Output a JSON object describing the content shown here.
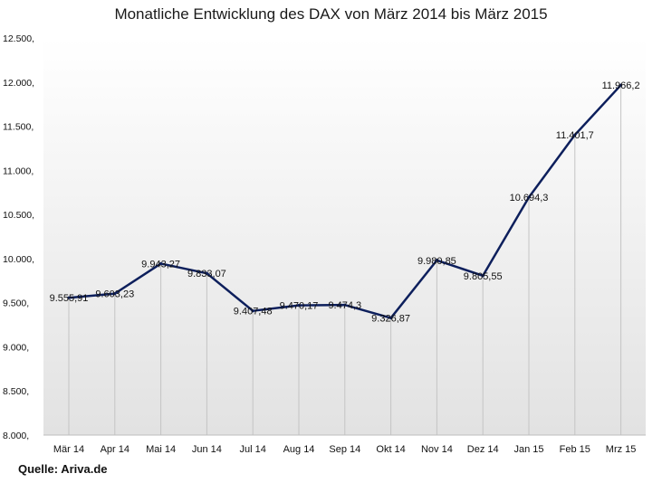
{
  "chart_data": {
    "type": "line",
    "title": "Monatliche  Entwicklung des DAX von März 2014 bis März 2015",
    "categories": [
      "Mär 14",
      "Apr 14",
      "Mai 14",
      "Jun 14",
      "Jul 14",
      "Aug 14",
      "Sep 14",
      "Okt 14",
      "Nov 14",
      "Dez 14",
      "Jan 15",
      "Feb 15",
      "Mrz 15"
    ],
    "values": [
      9555.91,
      9603.23,
      9943.27,
      9833.07,
      9407.48,
      9470.17,
      9474.3,
      9326.87,
      9980.85,
      9805.55,
      10694.3,
      11401.7,
      11966.2
    ],
    "value_labels": [
      "9.555,91",
      "9.603,23",
      "9.943,27",
      "9.833,07",
      "9.407,48",
      "9.470,17",
      "9.474,3",
      "9.326,87",
      "9.980,85",
      "9.805,55",
      "10.694,3",
      "11.401,7",
      "11.966,2"
    ],
    "ylim": [
      8000,
      12500
    ],
    "yticks": [
      8000,
      8500,
      9000,
      9500,
      10000,
      10500,
      11000,
      11500,
      12000,
      12500
    ],
    "ytick_labels": [
      "8.000,",
      "8.500,",
      "9.000,",
      "9.500,",
      "10.000,",
      "10.500,",
      "11.000,",
      "11.500,",
      "12.000,",
      "12.500,"
    ],
    "grid": false,
    "drop_lines": true,
    "line_color": "#0d1f5c",
    "background_gradient": [
      "#ffffff",
      "#e2e2e2"
    ]
  },
  "source_note": "Quelle: Ariva.de"
}
